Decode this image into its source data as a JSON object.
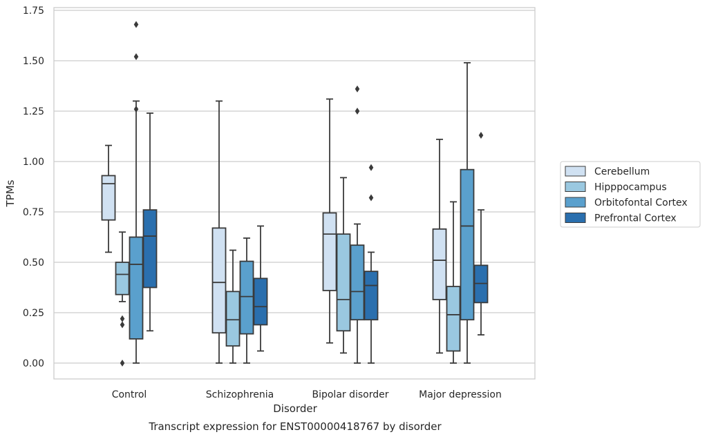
{
  "chart_data": {
    "type": "box",
    "caption": "Transcript expression for ENST00000418767 by disorder",
    "xlabel": "Disorder",
    "ylabel": "TPMs",
    "ylim": [
      -0.08,
      1.76
    ],
    "yticks": [
      "0.00",
      "0.25",
      "0.50",
      "0.75",
      "1.00",
      "1.25",
      "1.50",
      "1.75"
    ],
    "grid": "horizontal",
    "legend_position": "right",
    "categories": [
      "Control",
      "Schizophrenia",
      "Bipolar disorder",
      "Major depression"
    ],
    "series": [
      {
        "name": "Cerebellum",
        "color": "#d0e1f2",
        "boxes": [
          {
            "whislo": 0.55,
            "q1": 0.71,
            "med": 0.89,
            "q3": 0.93,
            "whishi": 1.08,
            "fliers": []
          },
          {
            "whislo": 0.0,
            "q1": 0.15,
            "med": 0.4,
            "q3": 0.67,
            "whishi": 1.3,
            "fliers": []
          },
          {
            "whislo": 0.1,
            "q1": 0.36,
            "med": 0.64,
            "q3": 0.745,
            "whishi": 1.31,
            "fliers": []
          },
          {
            "whislo": 0.05,
            "q1": 0.315,
            "med": 0.51,
            "q3": 0.665,
            "whishi": 1.11,
            "fliers": []
          }
        ]
      },
      {
        "name": "Hipppocampus",
        "color": "#9ac8e0",
        "boxes": [
          {
            "whislo": 0.305,
            "q1": 0.34,
            "med": 0.44,
            "q3": 0.5,
            "whishi": 0.65,
            "fliers": [
              0.22,
              0.19,
              0.0
            ]
          },
          {
            "whislo": 0.0,
            "q1": 0.085,
            "med": 0.215,
            "q3": 0.355,
            "whishi": 0.56,
            "fliers": []
          },
          {
            "whislo": 0.05,
            "q1": 0.16,
            "med": 0.315,
            "q3": 0.64,
            "whishi": 0.92,
            "fliers": []
          },
          {
            "whislo": 0.0,
            "q1": 0.06,
            "med": 0.24,
            "q3": 0.38,
            "whishi": 0.8,
            "fliers": []
          }
        ]
      },
      {
        "name": "Orbitofontal Cortex",
        "color": "#5aa0cd",
        "boxes": [
          {
            "whislo": 0.0,
            "q1": 0.12,
            "med": 0.49,
            "q3": 0.625,
            "whishi": 1.3,
            "fliers": [
              1.68,
              1.52,
              1.26
            ]
          },
          {
            "whislo": 0.0,
            "q1": 0.145,
            "med": 0.33,
            "q3": 0.505,
            "whishi": 0.62,
            "fliers": []
          },
          {
            "whislo": 0.0,
            "q1": 0.215,
            "med": 0.355,
            "q3": 0.585,
            "whishi": 0.69,
            "fliers": [
              1.36,
              1.25
            ]
          },
          {
            "whislo": 0.0,
            "q1": 0.215,
            "med": 0.68,
            "q3": 0.96,
            "whishi": 1.49,
            "fliers": []
          }
        ]
      },
      {
        "name": "Prefrontal Cortex",
        "color": "#2a6fae",
        "boxes": [
          {
            "whislo": 0.16,
            "q1": 0.375,
            "med": 0.63,
            "q3": 0.76,
            "whishi": 1.24,
            "fliers": []
          },
          {
            "whislo": 0.06,
            "q1": 0.19,
            "med": 0.28,
            "q3": 0.42,
            "whishi": 0.68,
            "fliers": []
          },
          {
            "whislo": 0.0,
            "q1": 0.215,
            "med": 0.385,
            "q3": 0.455,
            "whishi": 0.55,
            "fliers": [
              0.97,
              0.82
            ]
          },
          {
            "whislo": 0.14,
            "q1": 0.3,
            "med": 0.395,
            "q3": 0.485,
            "whishi": 0.76,
            "fliers": [
              1.13
            ]
          }
        ]
      }
    ]
  }
}
